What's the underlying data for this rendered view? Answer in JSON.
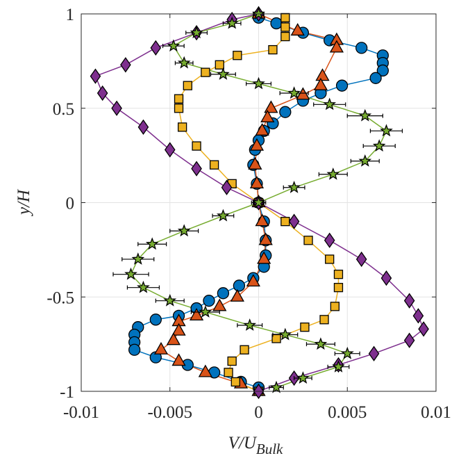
{
  "chart_data": {
    "type": "scatter",
    "xlabel": "V/U",
    "xlabel_sub": "Bulk",
    "ylabel": "y/H",
    "xlim": [
      -0.01,
      0.01
    ],
    "xticks": [
      -0.01,
      -0.005,
      0,
      0.005,
      0.01
    ],
    "ylim": [
      -1,
      1
    ],
    "yticks": [
      -1,
      -0.5,
      0,
      0.5,
      1
    ],
    "grid": true,
    "series": [
      {
        "marker": "circle",
        "color": "#0072BD",
        "x": [
          0.0,
          0.001,
          0.0025,
          0.004,
          0.0058,
          0.007,
          0.007,
          0.007,
          0.0066,
          0.0047,
          0.0035,
          0.0025,
          0.0015,
          0.0008,
          0.0003,
          0.0,
          -0.0002,
          -0.0003,
          -0.0001,
          0.0,
          0.0003,
          0.0004,
          0.0004,
          0.0003,
          -0.0003,
          -0.0011,
          -0.002,
          -0.0028,
          -0.0035,
          -0.0045,
          -0.0058,
          -0.0068,
          -0.007,
          -0.007,
          -0.007,
          -0.0058,
          -0.004,
          -0.0025,
          -0.001,
          0.0
        ],
        "y": [
          0.98,
          0.95,
          0.9,
          0.86,
          0.82,
          0.78,
          0.74,
          0.7,
          0.66,
          0.62,
          0.58,
          0.54,
          0.48,
          0.42,
          0.38,
          0.33,
          0.28,
          0.2,
          0.1,
          0,
          -0.1,
          -0.2,
          -0.28,
          -0.34,
          -0.4,
          -0.44,
          -0.48,
          -0.52,
          -0.56,
          -0.6,
          -0.62,
          -0.66,
          -0.7,
          -0.74,
          -0.78,
          -0.82,
          -0.86,
          -0.9,
          -0.95,
          -0.98
        ]
      },
      {
        "marker": "triangle",
        "color": "#D95319",
        "x": [
          0.0,
          0.0022,
          0.0044,
          0.0044,
          0.0036,
          0.0035,
          0.0025,
          0.0007,
          0.0005,
          0.0002,
          -0.0001,
          -0.0002,
          -0.0001,
          0.0,
          0.0002,
          0.0004,
          0.0003,
          -0.0003,
          -0.0012,
          -0.0022,
          -0.0035,
          -0.0045,
          -0.0045,
          -0.0048,
          -0.0055,
          -0.0045,
          -0.003,
          -0.001,
          0.0
        ],
        "y": [
          1,
          0.91,
          0.86,
          0.82,
          0.67,
          0.62,
          0.57,
          0.5,
          0.45,
          0.38,
          0.3,
          0.2,
          0.1,
          0,
          -0.1,
          -0.2,
          -0.3,
          -0.42,
          -0.5,
          -0.55,
          -0.6,
          -0.63,
          -0.68,
          -0.73,
          -0.78,
          -0.84,
          -0.9,
          -0.96,
          -1
        ]
      },
      {
        "marker": "square",
        "color": "#EDB120",
        "x": [
          0.0015,
          0.0015,
          0.0015,
          0.0008,
          -0.0012,
          -0.0022,
          -0.003,
          -0.004,
          -0.0045,
          -0.0045,
          -0.0043,
          -0.0035,
          -0.0025,
          -0.0015,
          0.0,
          0.0015,
          0.0028,
          0.004,
          0.0045,
          0.0045,
          0.0043,
          0.0037,
          0.0026,
          0.001,
          -0.0008,
          -0.0015,
          -0.0017,
          -0.0013,
          0.0
        ],
        "y": [
          0.98,
          0.93,
          0.88,
          0.81,
          0.78,
          0.73,
          0.69,
          0.62,
          0.55,
          0.5,
          0.4,
          0.3,
          0.2,
          0.1,
          0,
          -0.1,
          -0.2,
          -0.3,
          -0.38,
          -0.45,
          -0.55,
          -0.62,
          -0.66,
          -0.72,
          -0.78,
          -0.84,
          -0.9,
          -0.95,
          -1
        ]
      },
      {
        "marker": "diamond",
        "color": "#7E2F8E",
        "x": [
          0.0,
          -0.0015,
          -0.0035,
          -0.0058,
          -0.0075,
          -0.0092,
          -0.0088,
          -0.008,
          -0.0065,
          -0.005,
          -0.0035,
          -0.0018,
          0.0,
          0.002,
          0.004,
          0.0058,
          0.0072,
          0.0085,
          0.009,
          0.0093,
          0.0085,
          0.0065,
          0.0045,
          0.002,
          0.0
        ],
        "y": [
          1,
          0.97,
          0.9,
          0.82,
          0.73,
          0.67,
          0.58,
          0.5,
          0.4,
          0.28,
          0.18,
          0.08,
          0,
          -0.1,
          -0.2,
          -0.3,
          -0.4,
          -0.52,
          -0.6,
          -0.67,
          -0.73,
          -0.8,
          -0.86,
          -0.93,
          -1
        ]
      },
      {
        "marker": "star",
        "color": "#77AC30",
        "x": [
          0.0,
          -0.0015,
          -0.0035,
          -0.0048,
          -0.0042,
          -0.002,
          0.0,
          0.002,
          0.004,
          0.006,
          0.0072,
          0.0068,
          0.006,
          0.0042,
          0.002,
          0.0,
          -0.002,
          -0.0042,
          -0.006,
          -0.0068,
          -0.0072,
          -0.0065,
          -0.005,
          -0.003,
          -0.0005,
          0.0015,
          0.0035,
          0.005,
          0.0045,
          0.0025,
          0.001
        ],
        "y": [
          1,
          0.95,
          0.9,
          0.83,
          0.74,
          0.68,
          0.63,
          0.58,
          0.52,
          0.46,
          0.38,
          0.3,
          0.22,
          0.15,
          0.08,
          0,
          -0.07,
          -0.15,
          -0.22,
          -0.3,
          -0.38,
          -0.45,
          -0.52,
          -0.58,
          -0.65,
          -0.7,
          -0.75,
          -0.8,
          -0.87,
          -0.93,
          -0.98
        ],
        "xerr": [
          0.0003,
          0.0005,
          0.0006,
          0.0006,
          0.0005,
          0.0007,
          0.0007,
          0.0008,
          0.0009,
          0.001,
          0.0009,
          0.0009,
          0.0008,
          0.0008,
          0.0006,
          0.0004,
          0.0006,
          0.0008,
          0.0008,
          0.0009,
          0.001,
          0.0009,
          0.0008,
          0.0008,
          0.0007,
          0.0007,
          0.0008,
          0.0007,
          0.0006,
          0.0005,
          0.0004
        ]
      }
    ]
  }
}
